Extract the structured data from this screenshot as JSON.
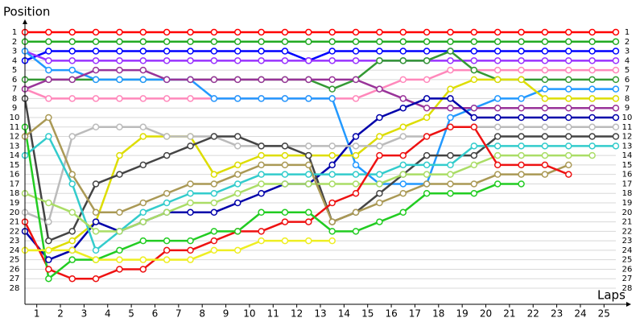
{
  "chart_data": {
    "type": "line",
    "y_label": "Position",
    "x_label": "Laps",
    "x": [
      0,
      1,
      2,
      3,
      4,
      5,
      6,
      7,
      8,
      9,
      10,
      11,
      12,
      13,
      14,
      15,
      16,
      17,
      18,
      19,
      20,
      21,
      22,
      23,
      24,
      25
    ],
    "xlim": [
      0,
      25
    ],
    "xticks": [
      {
        "value": 0.5,
        "label": "1"
      },
      {
        "value": 1.5,
        "label": "2"
      },
      {
        "value": 2.5,
        "label": "3"
      },
      {
        "value": 3.5,
        "label": "4"
      },
      {
        "value": 4.5,
        "label": "5"
      },
      {
        "value": 5.5,
        "label": "6"
      },
      {
        "value": 6.5,
        "label": "7"
      },
      {
        "value": 7.5,
        "label": "8"
      },
      {
        "value": 8.5,
        "label": "9"
      },
      {
        "value": 9.5,
        "label": "10"
      },
      {
        "value": 10.5,
        "label": "11"
      },
      {
        "value": 11.5,
        "label": "12"
      },
      {
        "value": 12.5,
        "label": "13"
      },
      {
        "value": 13.5,
        "label": "14"
      },
      {
        "value": 14.5,
        "label": "15"
      },
      {
        "value": 15.5,
        "label": "16"
      },
      {
        "value": 16.5,
        "label": "17"
      },
      {
        "value": 17.5,
        "label": "18"
      },
      {
        "value": 18.5,
        "label": "19"
      },
      {
        "value": 19.5,
        "label": "20"
      },
      {
        "value": 20.5,
        "label": "21"
      },
      {
        "value": 21.5,
        "label": "22"
      },
      {
        "value": 22.5,
        "label": "23"
      },
      {
        "value": 23.5,
        "label": "24"
      },
      {
        "value": 24.5,
        "label": "25"
      }
    ],
    "ylim": [
      0,
      29
    ],
    "y_inverted": true,
    "yticks": [
      1,
      2,
      3,
      4,
      5,
      6,
      7,
      8,
      9,
      10,
      11,
      12,
      13,
      14,
      15,
      16,
      17,
      18,
      19,
      20,
      21,
      22,
      23,
      24,
      25,
      26,
      27,
      28
    ],
    "grid": true,
    "series": [
      {
        "color": "#ff0000",
        "values": [
          1,
          1,
          1,
          1,
          1,
          1,
          1,
          1,
          1,
          1,
          1,
          1,
          1,
          1,
          1,
          1,
          1,
          1,
          1,
          1,
          1,
          1,
          1,
          1,
          1,
          1
        ]
      },
      {
        "color": "#22aa22",
        "values": [
          2,
          2,
          2,
          2,
          2,
          2,
          2,
          2,
          2,
          2,
          2,
          2,
          2,
          2,
          2,
          2,
          2,
          2,
          2,
          2,
          2,
          2,
          2,
          2,
          2,
          2
        ]
      },
      {
        "color": "#0000ff",
        "values": [
          4,
          3,
          3,
          3,
          3,
          3,
          3,
          3,
          3,
          3,
          3,
          3,
          4,
          3,
          3,
          3,
          3,
          3,
          3,
          3,
          3,
          3,
          3,
          3,
          3,
          3
        ]
      },
      {
        "color": "#9933ff",
        "values": [
          3,
          4,
          4,
          4,
          4,
          4,
          4,
          4,
          4,
          4,
          4,
          4,
          4,
          4,
          4,
          4,
          4,
          4,
          4,
          4,
          4,
          4,
          4,
          4,
          4,
          4
        ]
      },
      {
        "color": "#ff88bb",
        "values": [
          7,
          8,
          8,
          8,
          8,
          8,
          8,
          8,
          8,
          8,
          8,
          8,
          8,
          8,
          8,
          7,
          6,
          6,
          5,
          5,
          5,
          5,
          5,
          5,
          5,
          5
        ]
      },
      {
        "color": "#339933",
        "values": [
          6,
          6,
          6,
          6,
          6,
          6,
          6,
          6,
          6,
          6,
          6,
          6,
          6,
          7,
          6,
          4,
          4,
          4,
          3,
          5,
          6,
          6,
          6,
          6,
          6,
          6
        ]
      },
      {
        "color": "#2299ff",
        "values": [
          3,
          5,
          5,
          6,
          6,
          6,
          6,
          6,
          8,
          8,
          8,
          8,
          8,
          8,
          15,
          17,
          17,
          17,
          10,
          9,
          8,
          8,
          7,
          7,
          7,
          7
        ]
      },
      {
        "color": "#dddd00",
        "values": [
          24,
          24,
          23,
          21,
          14,
          12,
          12,
          12,
          16,
          15,
          14,
          14,
          14,
          14,
          14,
          12,
          11,
          10,
          7,
          6,
          6,
          6,
          8,
          8,
          8,
          8
        ]
      },
      {
        "color": "#993399",
        "values": [
          7,
          6,
          6,
          5,
          5,
          5,
          6,
          6,
          6,
          6,
          6,
          6,
          6,
          6,
          6,
          7,
          8,
          9,
          9,
          9,
          9,
          9,
          9,
          9,
          9,
          9
        ]
      },
      {
        "color": "#0000aa",
        "values": [
          22,
          25,
          24,
          21,
          22,
          21,
          20,
          20,
          20,
          19,
          18,
          17,
          17,
          15,
          12,
          10,
          9,
          8,
          8,
          10,
          10,
          10,
          10,
          10,
          10,
          10
        ]
      },
      {
        "color": "#bbbbbb",
        "values": [
          20,
          21,
          12,
          11,
          11,
          11,
          12,
          12,
          12,
          13,
          13,
          13,
          13,
          13,
          13,
          13,
          12,
          12,
          11,
          11,
          11,
          11,
          11,
          11,
          11,
          11
        ]
      },
      {
        "color": "#444444",
        "values": [
          8,
          23,
          22,
          17,
          16,
          15,
          14,
          13,
          12,
          12,
          13,
          13,
          14,
          21,
          20,
          18,
          16,
          14,
          14,
          14,
          12,
          12,
          12,
          12,
          12,
          12
        ]
      },
      {
        "color": "#33cccc",
        "values": [
          14,
          12,
          17,
          24,
          22,
          20,
          19,
          18,
          18,
          17,
          16,
          16,
          16,
          16,
          16,
          16,
          15,
          15,
          15,
          13,
          13,
          13,
          13,
          13,
          13,
          13
        ]
      },
      {
        "color": "#aadd66",
        "values": [
          18,
          19,
          20,
          22,
          22,
          21,
          20,
          19,
          19,
          18,
          17,
          17,
          17,
          17,
          17,
          17,
          16,
          16,
          16,
          15,
          14,
          14,
          14,
          14,
          14,
          null
        ]
      },
      {
        "color": "#aa9955",
        "values": [
          12,
          10,
          16,
          20,
          20,
          19,
          18,
          17,
          17,
          16,
          15,
          15,
          15,
          21,
          20,
          19,
          18,
          17,
          17,
          17,
          16,
          16,
          16,
          15,
          null,
          null
        ]
      },
      {
        "color": "#ee1111",
        "values": [
          21,
          26,
          27,
          27,
          26,
          26,
          24,
          24,
          23,
          22,
          22,
          21,
          21,
          19,
          18,
          14,
          14,
          12,
          11,
          11,
          15,
          15,
          15,
          16,
          null,
          null
        ]
      },
      {
        "color": "#22cc22",
        "values": [
          11,
          27,
          25,
          25,
          24,
          23,
          23,
          23,
          22,
          22,
          20,
          20,
          20,
          22,
          22,
          21,
          20,
          18,
          18,
          18,
          17,
          17,
          null,
          null,
          null,
          null
        ]
      },
      {
        "color": "#eeee22",
        "values": [
          24,
          24,
          24,
          25,
          25,
          25,
          25,
          25,
          24,
          24,
          23,
          23,
          23,
          23,
          null,
          null,
          null,
          null,
          null,
          null,
          null,
          null,
          null,
          null,
          null,
          null
        ]
      }
    ]
  }
}
